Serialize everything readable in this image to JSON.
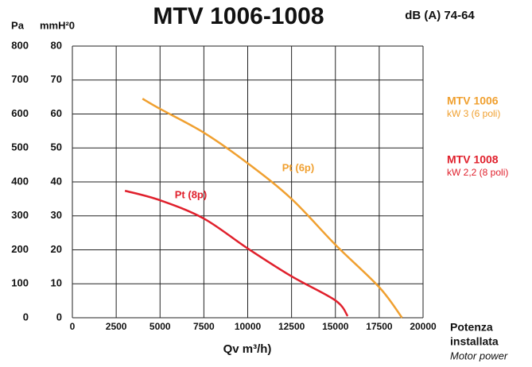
{
  "chart_data": {
    "type": "line",
    "title": "MTV 1006-1008",
    "subtitle": "dB (A) 74-64",
    "y_label": "Pa",
    "y2_label": "mmH²0",
    "x_label": "Qv m³/h)",
    "side_labels": [
      "Potenza",
      "installata",
      "Motor power"
    ],
    "xlim": [
      0,
      20000
    ],
    "xticks": [
      0,
      2500,
      5000,
      7500,
      10000,
      12500,
      15000,
      17500,
      20000
    ],
    "ylim": [
      0,
      800
    ],
    "yticks": [
      0,
      100,
      200,
      300,
      400,
      500,
      600,
      700,
      800
    ],
    "y2lim": [
      0,
      80
    ],
    "y2ticks": [
      0,
      10,
      20,
      30,
      40,
      50,
      60,
      70,
      80
    ],
    "grid": true,
    "series": [
      {
        "name": "MTV 1006",
        "power": "kW 3 (6 poli)",
        "annotation": "Pt (6p)",
        "color": "#f0a030",
        "x": [
          4000,
          5000,
          7500,
          10000,
          12500,
          15000,
          17500,
          18800
        ],
        "values": [
          645,
          615,
          545,
          455,
          350,
          215,
          90,
          0
        ]
      },
      {
        "name": "MTV 1008",
        "power": "kW 2,2 (8 poli)",
        "annotation": "Pt (8p)",
        "color": "#e0202c",
        "x": [
          3000,
          5000,
          7500,
          10000,
          12500,
          15000,
          15700
        ],
        "values": [
          374,
          346,
          292,
          204,
          122,
          51,
          5
        ]
      }
    ]
  }
}
